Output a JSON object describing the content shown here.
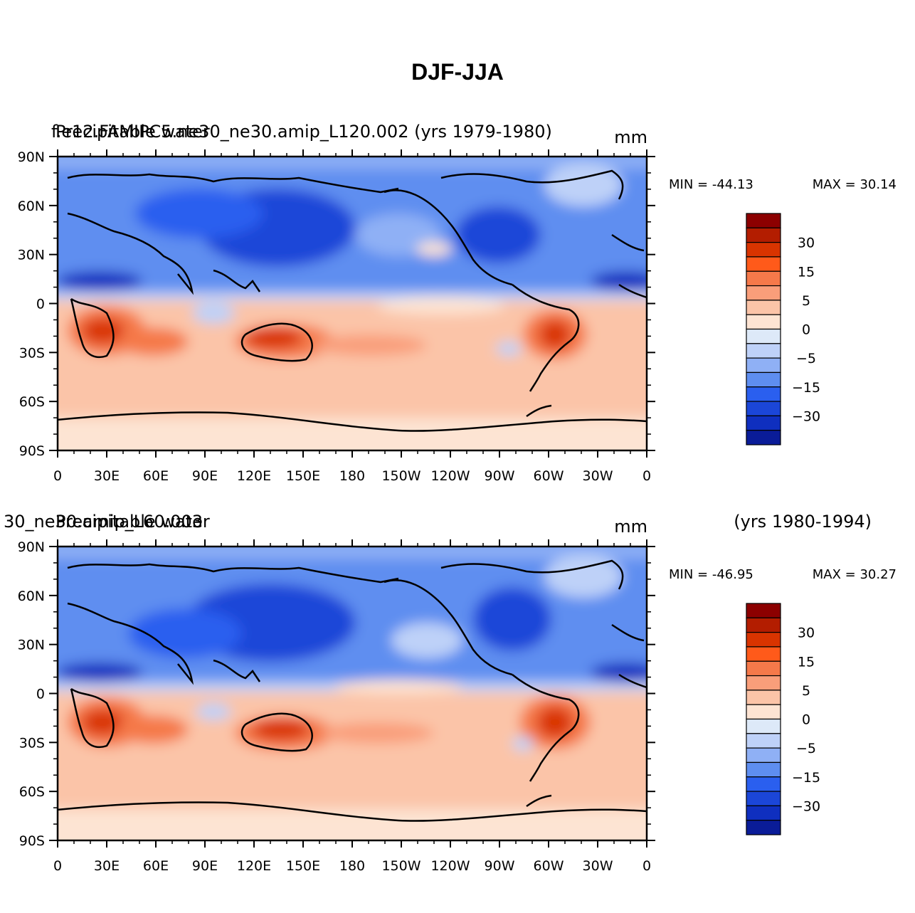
{
  "page": {
    "title": "DJF-JJA"
  },
  "colormap": {
    "colors": [
      "#8c0000",
      "#b31d00",
      "#d93400",
      "#ff5a1a",
      "#f5794a",
      "#f99e7a",
      "#fbc4a8",
      "#fde4d3",
      "#dde9f8",
      "#bed1f8",
      "#8fb0f5",
      "#5e8ef0",
      "#2a5fef",
      "#1b46d8",
      "#0f2fbf",
      "#0a1c98"
    ],
    "labels": [
      "30",
      "15",
      "5",
      "0",
      "-5",
      "-15",
      "-30"
    ]
  },
  "axes": {
    "lon_labels": [
      "0",
      "30E",
      "60E",
      "90E",
      "120E",
      "150E",
      "180",
      "150W",
      "120W",
      "90W",
      "60W",
      "30W",
      "0"
    ],
    "lat_labels": [
      "90N",
      "60N",
      "30N",
      "0",
      "30S",
      "60S",
      "90S"
    ]
  },
  "panels": [
    {
      "left_title_a": "f.e12.FAMIPC5.ne30_ne30.amip_L120.002 (yrs 1979-1980)",
      "left_title_b": "Precipitable water",
      "units": "mm",
      "right_title": "",
      "min_text": "MIN = -44.13",
      "max_text": "MAX =  30.14"
    },
    {
      "left_title_a": "30_ne30.amip_L60.003",
      "left_title_b": "Precipitable water",
      "units": "mm",
      "right_title": "(yrs 1980-1994)",
      "min_text": "MIN = -46.95",
      "max_text": "MAX =  30.27"
    }
  ],
  "chart_data": [
    {
      "type": "heatmap",
      "title": "DJF-JJA",
      "subtitle": "f.e12.FAMIPC5.ne30_ne30.amip_L120.002 (yrs 1979-1980)",
      "variable": "Precipitable water",
      "units": "mm",
      "x_ticks": [
        "0",
        "30E",
        "60E",
        "90E",
        "120E",
        "150E",
        "180",
        "150W",
        "120W",
        "90W",
        "60W",
        "30W",
        "0"
      ],
      "y_ticks": [
        "90N",
        "60N",
        "30N",
        "0",
        "30S",
        "60S",
        "90S"
      ],
      "min": -44.13,
      "max": 30.14,
      "contour_levels": [
        -40,
        -30,
        -20,
        -15,
        -10,
        -5,
        -2,
        0,
        2,
        5,
        10,
        15,
        20,
        25,
        30
      ]
    },
    {
      "type": "heatmap",
      "title": "DJF-JJA",
      "subtitle": "30_ne30.amip_L60.003 (yrs 1980-1994)",
      "variable": "Precipitable water",
      "units": "mm",
      "x_ticks": [
        "0",
        "30E",
        "60E",
        "90E",
        "120E",
        "150E",
        "180",
        "150W",
        "120W",
        "90W",
        "60W",
        "30W",
        "0"
      ],
      "y_ticks": [
        "90N",
        "60N",
        "30N",
        "0",
        "30S",
        "60S",
        "90S"
      ],
      "min": -46.95,
      "max": 30.27,
      "contour_levels": [
        -40,
        -30,
        -20,
        -15,
        -10,
        -5,
        -2,
        0,
        2,
        5,
        10,
        15,
        20,
        25,
        30
      ]
    }
  ]
}
